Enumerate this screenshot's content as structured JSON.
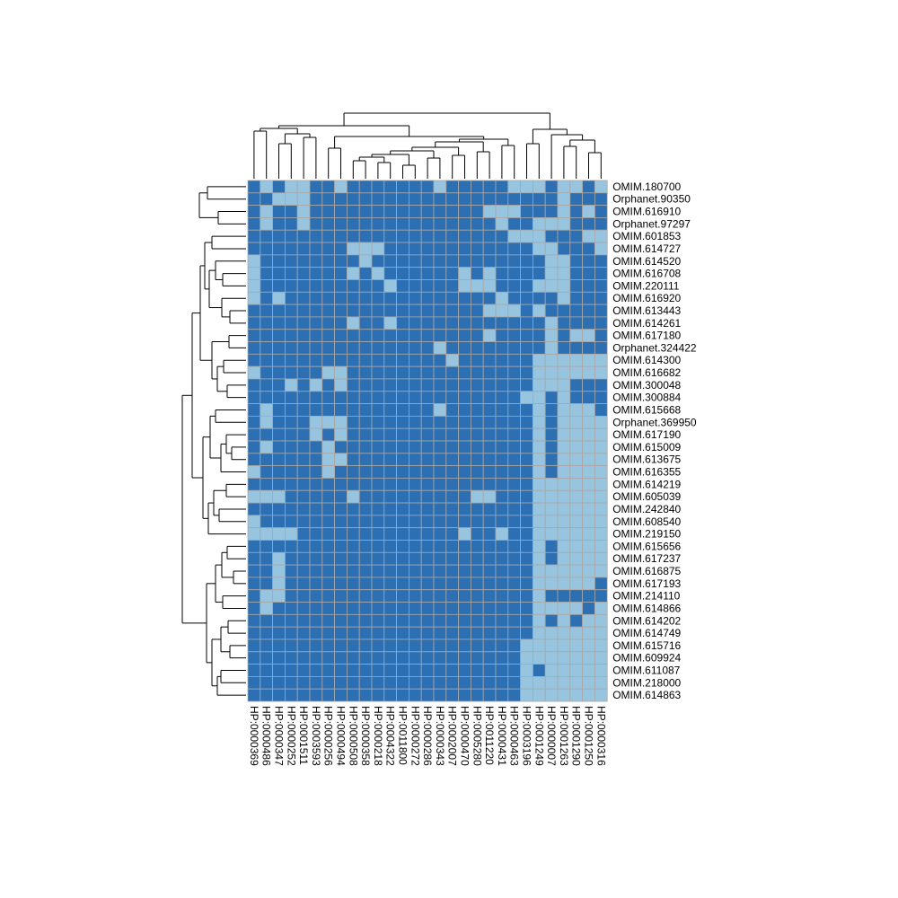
{
  "chart_data": {
    "type": "heatmap",
    "rows": [
      "OMIM.180700",
      "Orphanet.90350",
      "OMIM.616910",
      "Orphanet.97297",
      "OMIM.601853",
      "OMIM.614727",
      "OMIM.614520",
      "OMIM.616708",
      "OMIM.220111",
      "OMIM.616920",
      "OMIM.613443",
      "OMIM.614261",
      "OMIM.617180",
      "Orphanet.324422",
      "OMIM.614300",
      "OMIM.616682",
      "OMIM.300048",
      "OMIM.300884",
      "OMIM.615668",
      "Orphanet.369950",
      "OMIM.617190",
      "OMIM.615009",
      "OMIM.613675",
      "OMIM.616355",
      "OMIM.614219",
      "OMIM.605039",
      "OMIM.242840",
      "OMIM.608540",
      "OMIM.219150",
      "OMIM.615656",
      "OMIM.617237",
      "OMIM.616875",
      "OMIM.617193",
      "OMIM.214110",
      "OMIM.614866",
      "OMIM.614202",
      "OMIM.614749",
      "OMIM.615716",
      "OMIM.609924",
      "OMIM.611087",
      "OMIM.218000",
      "OMIM.614863"
    ],
    "columns": [
      "HP:0000369",
      "HP:0000486",
      "HP:0000347",
      "HP:0000252",
      "HP:0001511",
      "HP:0003593",
      "HP:0000256",
      "HP:0000494",
      "HP:0000508",
      "HP:0000358",
      "HP:0000218",
      "HP:0004322",
      "HP:0011800",
      "HP:0000272",
      "HP:0000286",
      "HP:0000343",
      "HP:0002007",
      "HP:0000470",
      "HP:0005280",
      "HP:0011220",
      "HP:0000431",
      "HP:0000463",
      "HP:0003196",
      "HP:0001249",
      "HP:0000007",
      "HP:0001263",
      "HP:0001290",
      "HP:0001250",
      "HP:0000316"
    ],
    "matrix": [
      "01011001000000010000011101101",
      "00111000000000000000000001000",
      "01001000000000000001110001010",
      "01001000000000000000100111000",
      "00000000000000000000011100011",
      "00000000111000000000000110001",
      "10000000010000000000000011000",
      "10000000101000000101000011000",
      "10000000000100000111000111000",
      "10100000000000000000100001000",
      "00000000000000000001110100000",
      "00000000100100000000000010000",
      "00000000000000000001000010110",
      "00000000000000010000000010000",
      "00000000000000001000000111111",
      "10000011000000000000000111111",
      "00010101000000000000000111000",
      "00000000000000000000001101000",
      "01000000000000010000000101110",
      "01000111000000000000000101111",
      "00000101000000000000000101111",
      "01000010000000000000000101111",
      "00000011000000000000000101111",
      "10000010000000000000000101111",
      "00000000000000000000000111111",
      "11100000100000000011000111111",
      "00000000000000000000000111111",
      "10000000000000000000000111111",
      "11110000000000000100100111111",
      "00000000000000000000000101111",
      "00100000000000000000000101111",
      "00100000000000000000000111111",
      "00100000000000000000000111110",
      "01100000000000000000000100000",
      "01000000000000000000000111101",
      "00000000000000000000000101011",
      "00000000000000000000000111111",
      "00000000000000000000001111111",
      "00000000000000000000001111111",
      "00000000000000000000001011111",
      "00000000000000000000001111111",
      "00000000000000000000001111111"
    ],
    "legend": "none",
    "colors": {
      "1": "#97c4df",
      "0": "#2c6fb3",
      "grid": "#a8a8a8",
      "dendrogram": "#000000"
    }
  }
}
